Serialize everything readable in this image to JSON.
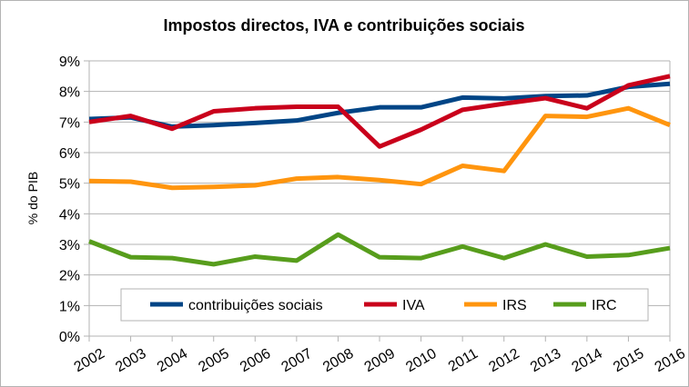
{
  "chart_data": {
    "type": "line",
    "title": "Impostos directos, IVA e contribuições sociais",
    "xlabel": "",
    "ylabel": "% do PIB",
    "ylim": [
      0,
      9
    ],
    "yticks": [
      "0%",
      "1%",
      "2%",
      "3%",
      "4%",
      "5%",
      "6%",
      "7%",
      "8%",
      "9%"
    ],
    "grid": true,
    "legend_position": "bottom-inside",
    "x": [
      "2002",
      "2003",
      "2004",
      "2005",
      "2006",
      "2007",
      "2008",
      "2009",
      "2010",
      "2011",
      "2012",
      "2013",
      "2014",
      "2015",
      "2016"
    ],
    "series": [
      {
        "name": "contribuições sociais",
        "color": "#004586",
        "values": [
          7.1,
          7.15,
          6.85,
          6.9,
          6.97,
          7.05,
          7.3,
          7.48,
          7.48,
          7.8,
          7.77,
          7.85,
          7.87,
          8.15,
          8.25
        ]
      },
      {
        "name": "IVA",
        "color": "#c9001b",
        "values": [
          7.0,
          7.2,
          6.78,
          7.35,
          7.45,
          7.5,
          7.5,
          6.2,
          6.75,
          7.4,
          7.6,
          7.78,
          7.45,
          8.2,
          8.5
        ]
      },
      {
        "name": "IRS",
        "color": "#ff950e",
        "values": [
          5.07,
          5.05,
          4.85,
          4.88,
          4.93,
          5.15,
          5.2,
          5.1,
          4.97,
          5.57,
          5.4,
          7.2,
          7.17,
          7.45,
          6.9
        ]
      },
      {
        "name": "IRC",
        "color": "#579d1c",
        "values": [
          3.1,
          2.58,
          2.55,
          2.35,
          2.6,
          2.47,
          3.32,
          2.58,
          2.55,
          2.93,
          2.55,
          3.0,
          2.6,
          2.65,
          2.88
        ]
      }
    ]
  }
}
